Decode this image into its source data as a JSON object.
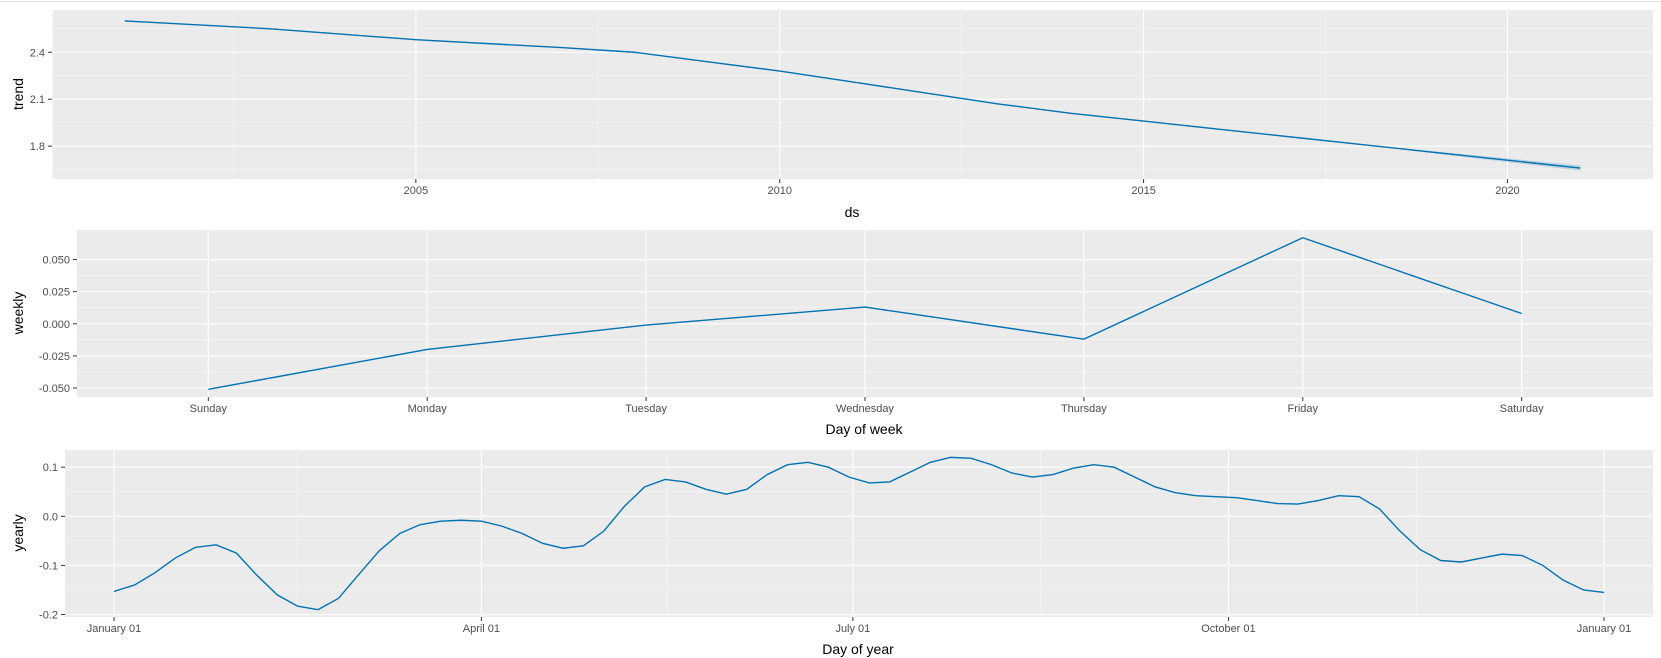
{
  "window": {
    "title": ""
  },
  "chart_data": [
    {
      "type": "line",
      "name": "trend",
      "xlabel": "ds",
      "ylabel": "trend",
      "x_ticks": [
        2005,
        2010,
        2015,
        2020
      ],
      "y_ticks": [
        1.8,
        2.1,
        2.4
      ],
      "y_tick_labels": [
        "1.8",
        "2.1",
        "2.4"
      ],
      "xlim": [
        2000.0,
        2022.0
      ],
      "ylim": [
        1.59,
        2.67
      ],
      "grid": true,
      "color": "#0072B2",
      "band_color": "#0072B2",
      "x": [
        2001.0,
        2003.0,
        2005.0,
        2007.0,
        2008.0,
        2009.0,
        2010.0,
        2011.0,
        2012.0,
        2013.0,
        2014.0,
        2015.0,
        2016.0,
        2017.0,
        2018.0,
        2019.0,
        2020.0,
        2021.0
      ],
      "y": [
        2.6,
        2.55,
        2.48,
        2.43,
        2.4,
        2.34,
        2.28,
        2.21,
        2.14,
        2.07,
        2.01,
        1.96,
        1.91,
        1.86,
        1.81,
        1.76,
        1.71,
        1.66
      ],
      "upper": [
        2.6,
        2.55,
        2.48,
        2.43,
        2.4,
        2.34,
        2.28,
        2.21,
        2.14,
        2.07,
        2.01,
        1.96,
        1.91,
        1.86,
        1.81,
        1.767,
        1.722,
        1.677
      ],
      "lower": [
        2.6,
        2.55,
        2.48,
        2.43,
        2.4,
        2.34,
        2.28,
        2.21,
        2.14,
        2.07,
        2.01,
        1.96,
        1.91,
        1.86,
        1.81,
        1.753,
        1.698,
        1.643
      ]
    },
    {
      "type": "line",
      "name": "weekly",
      "xlabel": "Day of week",
      "ylabel": "weekly",
      "categories": [
        "Sunday",
        "Monday",
        "Tuesday",
        "Wednesday",
        "Thursday",
        "Friday",
        "Saturday"
      ],
      "values": [
        -0.051,
        -0.02,
        -0.001,
        0.013,
        -0.012,
        0.067,
        0.008
      ],
      "y_ticks": [
        -0.05,
        -0.025,
        0,
        0.025,
        0.05
      ],
      "y_tick_labels": [
        "-0.050",
        "-0.025",
        "0.000",
        "0.025",
        "0.050"
      ],
      "ylim": [
        -0.057,
        0.073
      ],
      "grid": true,
      "color": "#0072B2"
    },
    {
      "type": "line",
      "name": "yearly",
      "xlabel": "Day of year",
      "ylabel": "yearly",
      "x_ticks": [
        0,
        90,
        181,
        273,
        365
      ],
      "x_tick_labels": [
        "January 01",
        "April 01",
        "July 01",
        "October 01",
        "January 01"
      ],
      "y_ticks": [
        -0.2,
        -0.1,
        0,
        0.1
      ],
      "y_tick_labels": [
        "-0.2",
        "-0.1",
        "0.0",
        "0.1"
      ],
      "xlim": [
        -12,
        377
      ],
      "ylim": [
        -0.205,
        0.135
      ],
      "grid": true,
      "color": "#0072B2",
      "x": [
        0,
        5,
        10,
        15,
        20,
        25,
        30,
        35,
        40,
        45,
        50,
        55,
        60,
        65,
        70,
        75,
        80,
        85,
        90,
        95,
        100,
        105,
        110,
        115,
        120,
        125,
        130,
        135,
        140,
        145,
        150,
        155,
        160,
        165,
        170,
        175,
        180,
        185,
        190,
        195,
        200,
        205,
        210,
        215,
        220,
        225,
        230,
        235,
        240,
        245,
        250,
        255,
        260,
        265,
        270,
        275,
        280,
        285,
        290,
        295,
        300,
        305,
        310,
        315,
        320,
        325,
        330,
        335,
        340,
        345,
        350,
        355,
        360,
        365
      ],
      "y": [
        -0.153,
        -0.14,
        -0.115,
        -0.085,
        -0.063,
        -0.058,
        -0.075,
        -0.12,
        -0.16,
        -0.183,
        -0.19,
        -0.167,
        -0.118,
        -0.07,
        -0.035,
        -0.017,
        -0.01,
        -0.008,
        -0.01,
        -0.02,
        -0.035,
        -0.055,
        -0.065,
        -0.06,
        -0.03,
        0.02,
        0.06,
        0.075,
        0.07,
        0.055,
        0.045,
        0.055,
        0.085,
        0.105,
        0.11,
        0.1,
        0.08,
        0.068,
        0.07,
        0.09,
        0.11,
        0.12,
        0.118,
        0.105,
        0.088,
        0.08,
        0.085,
        0.098,
        0.105,
        0.1,
        0.08,
        0.06,
        0.048,
        0.042,
        0.04,
        0.038,
        0.032,
        0.026,
        0.025,
        0.032,
        0.042,
        0.04,
        0.015,
        -0.03,
        -0.068,
        -0.09,
        -0.093,
        -0.085,
        -0.077,
        -0.08,
        -0.1,
        -0.13,
        -0.15,
        -0.155
      ]
    }
  ]
}
